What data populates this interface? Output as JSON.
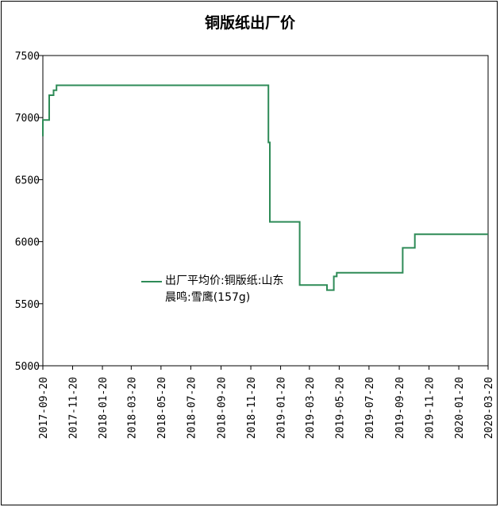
{
  "chart_data": {
    "type": "line",
    "title": "铜版纸出厂价",
    "xlabel": "",
    "ylabel": "",
    "ylim": [
      5000,
      7500
    ],
    "y_ticks": [
      5000,
      5500,
      6000,
      6500,
      7000,
      7500
    ],
    "x_range": [
      "2017-09-20",
      "2020-03-20"
    ],
    "x_ticks": [
      "2017-09-20",
      "2017-11-20",
      "2018-01-20",
      "2018-03-20",
      "2018-05-20",
      "2018-07-20",
      "2018-09-20",
      "2018-11-20",
      "2019-01-20",
      "2019-03-20",
      "2019-05-20",
      "2019-07-20",
      "2019-09-20",
      "2019-11-20",
      "2020-01-20",
      "2020-03-20"
    ],
    "grid": false,
    "legend_position": "center-left",
    "color": "#2e8b57",
    "series": [
      {
        "name": "出厂平均价:铜版纸:山东晨鸣:雪鹰(157g)",
        "points": [
          [
            "2017-09-20",
            6850
          ],
          [
            "2017-09-20",
            6980
          ],
          [
            "2017-10-03",
            6980
          ],
          [
            "2017-10-03",
            7180
          ],
          [
            "2017-10-12",
            7180
          ],
          [
            "2017-10-12",
            7220
          ],
          [
            "2017-10-18",
            7220
          ],
          [
            "2017-10-18",
            7260
          ],
          [
            "2018-12-26",
            7260
          ],
          [
            "2018-12-26",
            6800
          ],
          [
            "2018-12-29",
            6800
          ],
          [
            "2018-12-29",
            6160
          ],
          [
            "2019-02-28",
            6160
          ],
          [
            "2019-02-28",
            5650
          ],
          [
            "2019-04-25",
            5650
          ],
          [
            "2019-04-25",
            5610
          ],
          [
            "2019-05-09",
            5610
          ],
          [
            "2019-05-09",
            5720
          ],
          [
            "2019-05-15",
            5720
          ],
          [
            "2019-05-15",
            5750
          ],
          [
            "2019-09-27",
            5750
          ],
          [
            "2019-09-27",
            5950
          ],
          [
            "2019-10-22",
            5950
          ],
          [
            "2019-10-22",
            6060
          ],
          [
            "2020-03-20",
            6060
          ]
        ]
      }
    ]
  }
}
